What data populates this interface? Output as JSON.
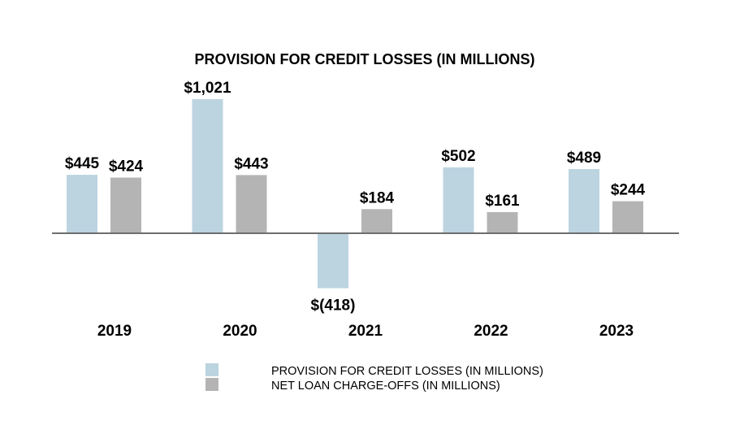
{
  "chart_data": {
    "type": "bar",
    "title": "PROVISION FOR CREDIT LOSSES (IN MILLIONS)",
    "categories": [
      "2019",
      "2020",
      "2021",
      "2022",
      "2023"
    ],
    "series": [
      {
        "name": "PROVISION FOR CREDIT LOSSES (IN MILLIONS)",
        "color": "#bcd4e0",
        "values": [
          445,
          1021,
          -418,
          502,
          489
        ],
        "labels": [
          "$445",
          "$1,021",
          "$(418)",
          "$502",
          "$489"
        ]
      },
      {
        "name": "NET LOAN CHARGE-OFFS (IN MILLIONS)",
        "color": "#b4b4b4",
        "values": [
          424,
          443,
          184,
          161,
          244
        ],
        "labels": [
          "$424",
          "$443",
          "$184",
          "$161",
          "$244"
        ]
      }
    ],
    "xlabel": "",
    "ylabel": "",
    "ylim": [
      -418,
      1021
    ],
    "grid": false,
    "legend_position": "bottom"
  }
}
